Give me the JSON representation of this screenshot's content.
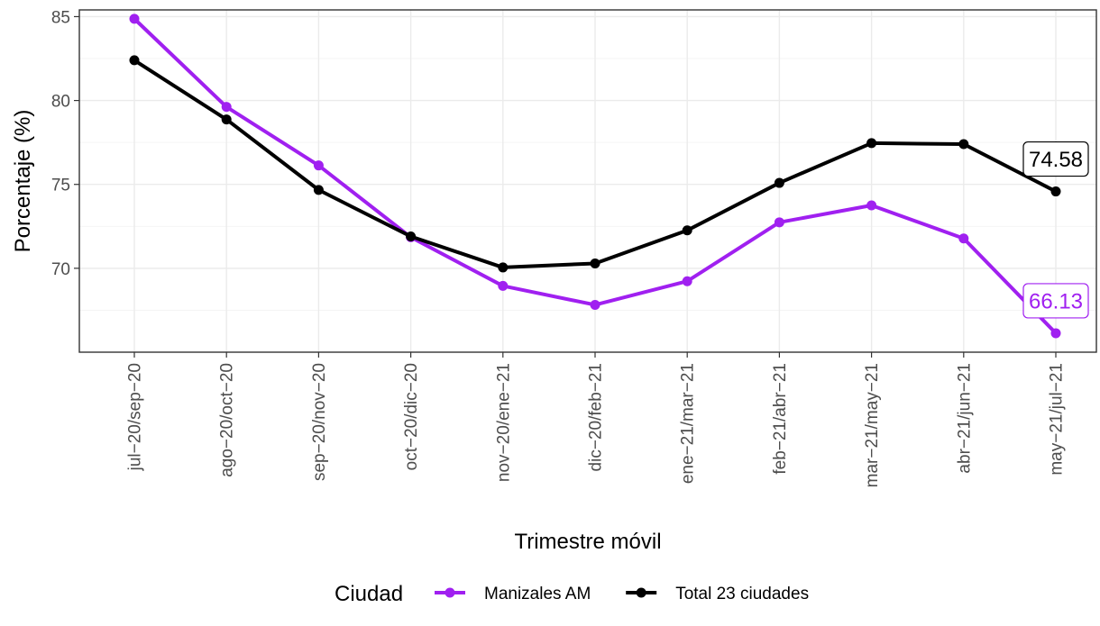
{
  "chart_data": {
    "type": "line",
    "xlabel": "Trimestre móvil",
    "ylabel": "Porcentaje (%)",
    "ylim": [
      65.0,
      85.4
    ],
    "yticks": [
      70,
      75,
      80,
      85
    ],
    "grid": true,
    "legend_position": "bottom",
    "legend_title": "Ciudad",
    "categories": [
      "jul−20/sep−20",
      "ago−20/oct−20",
      "sep−20/nov−20",
      "oct−20/dic−20",
      "nov−20/ene−21",
      "dic−20/feb−21",
      "ene−21/mar−21",
      "feb−21/abr−21",
      "mar−21/may−21",
      "abr−21/jun−21",
      "may−21/jul−21"
    ],
    "series": [
      {
        "name": "Manizales AM",
        "color": "#a020f0",
        "values": [
          84.87,
          79.62,
          76.13,
          71.85,
          68.95,
          67.82,
          69.23,
          72.74,
          73.75,
          71.78,
          66.13
        ],
        "end_label": "66.13"
      },
      {
        "name": "Total 23 ciudades",
        "color": "#000000",
        "values": [
          82.4,
          78.87,
          74.67,
          71.9,
          70.05,
          70.29,
          72.26,
          75.09,
          77.46,
          77.4,
          74.58
        ],
        "end_label": "74.58"
      }
    ]
  }
}
